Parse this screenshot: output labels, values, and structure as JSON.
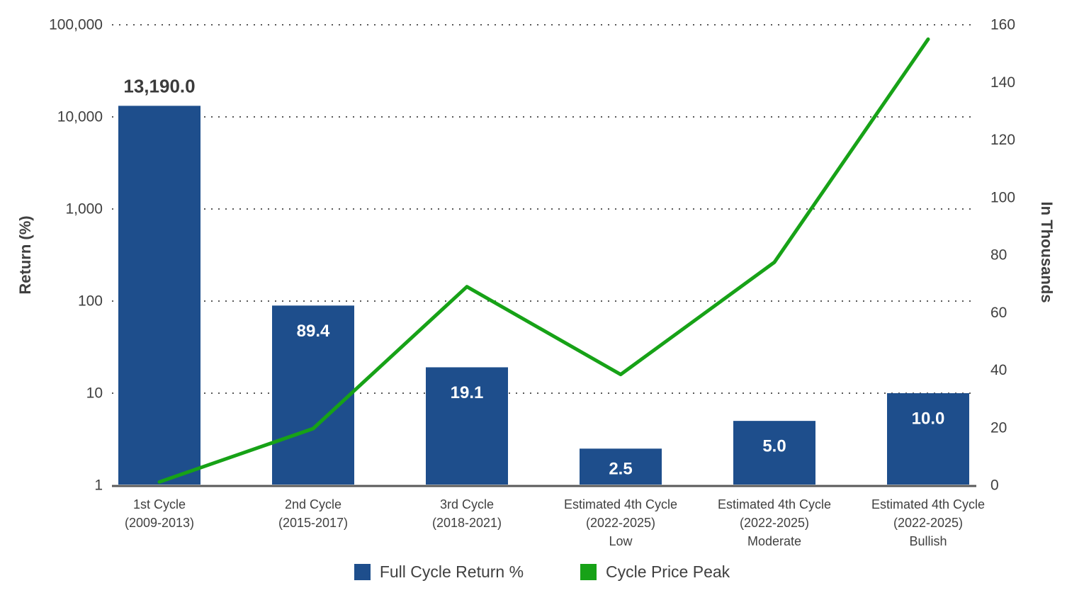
{
  "chart_data": {
    "type": "combo-bar-line",
    "categories": [
      [
        "1st Cycle",
        "(2009-2013)"
      ],
      [
        "2nd Cycle",
        "(2015-2017)"
      ],
      [
        "3rd Cycle",
        "(2018-2021)"
      ],
      [
        "Estimated 4th Cycle",
        "(2022-2025)",
        "Low"
      ],
      [
        "Estimated 4th Cycle",
        "(2022-2025)",
        "Moderate"
      ],
      [
        "Estimated 4th Cycle",
        "(2022-2025)",
        "Bullish"
      ]
    ],
    "series": [
      {
        "name": "Full Cycle Return %",
        "type": "bar",
        "axis": "left",
        "color": "#1e4e8c",
        "values": [
          13190.0,
          89.4,
          19.1,
          2.5,
          5.0,
          10.0
        ],
        "value_labels": [
          "13,190.0",
          "89.4",
          "19.1",
          "2.5",
          "5.0",
          "10.0"
        ]
      },
      {
        "name": "Cycle Price Peak",
        "type": "line",
        "axis": "right",
        "color": "#17a217",
        "values": [
          1.15,
          19.7,
          69.0,
          38.5,
          77.5,
          155.0
        ]
      }
    ],
    "left_axis": {
      "label": "Return (%)",
      "scale": "log",
      "range": [
        1,
        100000
      ],
      "tick_labels": [
        "100,000",
        "10,000",
        "1,000",
        "100",
        "10",
        "1"
      ],
      "tick_values": [
        100000,
        10000,
        1000,
        100,
        10,
        1
      ]
    },
    "right_axis": {
      "label": "In Thousands",
      "scale": "linear",
      "range": [
        0,
        160
      ],
      "tick_values": [
        0,
        20,
        40,
        60,
        80,
        100,
        120,
        140,
        160
      ]
    },
    "grid": {
      "horizontal": "dotted",
      "at_left_axis_decades": true
    },
    "legend": {
      "position": "bottom",
      "entries": [
        "Full Cycle Return %",
        "Cycle Price Peak"
      ]
    },
    "colors": {
      "bar_blue": "#1e4e8c",
      "line_green": "#17a217",
      "grid_gray": "#595959",
      "text_gray": "#404040",
      "bar_label_dark": "#3b3b3b",
      "bar_label_light": "#ffffff"
    }
  }
}
